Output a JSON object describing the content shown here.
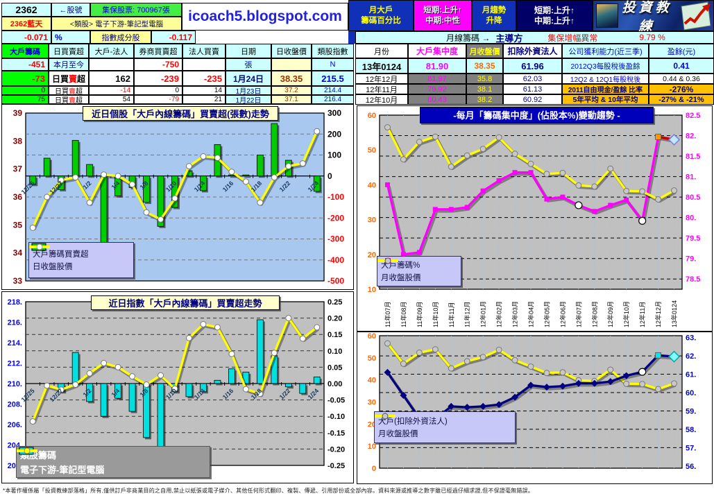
{
  "header": {
    "stock_id": "2362",
    "stock_ref": "←股號",
    "custody": "集保股票: 700967張",
    "stock_name": "2362藍天",
    "sector": "<類股> 電子下游-筆記型電腦",
    "site": "icoach5.blogspot.com",
    "chg1": "-0.071",
    "pct": "%",
    "idx_comp": "指數成分股",
    "chg2": "-0.117"
  },
  "band": {
    "b1a": "月大戶",
    "b1b": "籌碼百分比",
    "b2a": "短期:上升↑",
    "b2b": "中期:中性",
    "b3a": "月趨勢",
    "b3b": "升降",
    "b4a": "短期:上升↑",
    "b4b": "中期:上升↑",
    "logo": "投資教練"
  },
  "monthly_band": {
    "t1": "月線籌碼 →",
    "t2": "主導方",
    "t3": "集保增幅異常",
    "t4": "9.79 %"
  },
  "left_table": {
    "headers": [
      "大戶籌碼",
      "日買賣超",
      "大戶-法人",
      "券商買賣超",
      "法人買賣",
      "日期",
      "日收盤價",
      "類股指數"
    ],
    "sell_label": {
      "p1": "日買",
      "p2": "賣",
      "p3": "超"
    },
    "month_row": {
      "v": "-451",
      "label": "本月至今",
      "broker": "-750",
      "unit": "張",
      "idx": "N"
    },
    "rows": [
      {
        "chip": "-73",
        "inst": "162",
        "broker": "-239",
        "legal": "-235",
        "date": "1月24日",
        "close": "38.35",
        "index": "215.5"
      },
      {
        "chip": "0",
        "inst": "-14",
        "broker": "0",
        "legal": "14",
        "date": "1月23日",
        "close": "37.2",
        "index": "214.4"
      },
      {
        "chip": "75",
        "inst": "54",
        "broker": "-79",
        "legal": "21",
        "date": "1月22日",
        "close": "37.1",
        "index": "216.4"
      }
    ]
  },
  "right_table": {
    "headers": [
      "月份",
      "大戶集中度",
      "月收盤價",
      "扣除外資法人",
      "公司獲利能力(近三季)",
      "盈餘(元)"
    ],
    "rows": [
      {
        "month": "13年0124",
        "conc": "81.90",
        "close": "38.35",
        "excl": "61.96",
        "info": "2012Q3每股稅後盈餘",
        "val": "0.41"
      },
      {
        "month": "12年12月",
        "conc": "81.97",
        "close": "35.8",
        "excl": "62.03",
        "info": "12Q2 & 12Q1每股稅後",
        "val": "0.44 & 0.36"
      },
      {
        "month": "12年11月",
        "conc": "79.92",
        "close": "38.1",
        "excl": "61.13",
        "info": "2011自由現金/盈餘 比率",
        "val": "-276%"
      },
      {
        "month": "12年10月",
        "conc": "80.43",
        "close": "38.2",
        "excl": "60.92",
        "info": "5年平均 & 10年平均",
        "val": "-27% & -21%"
      }
    ]
  },
  "footer": {
    "disclaimer": "*本著作權係屬「投資教練部落格」所有,僅供訂戶非商業目的之自用,禁止以紙張或電子媒介、其他任何形式翻印、複製、傳遞、引用部份或全部內容。資料來源或推導之數字雖已經過仔細求證,但不保證毫無錯誤。"
  },
  "chart_data": [
    {
      "id": "daily-stock",
      "type": "bar",
      "title": "近日個股「大戶內線籌碼」買賣超(張數)走勢",
      "categories": [
        "12/25",
        "12/26",
        "12/27",
        "12/28",
        "1/2",
        "1/3",
        "1/4",
        "1/7",
        "1/8",
        "1/9",
        "1/10",
        "1/11",
        "1/14",
        "1/15",
        "1/16",
        "1/17",
        "1/18",
        "1/21",
        "1/22",
        "1/23",
        "1/24"
      ],
      "series": [
        {
          "name": "大戶籌碼買賣超",
          "type": "bar",
          "axis": "right",
          "color": "#00CC00",
          "values": [
            -40,
            85,
            -65,
            170,
            55,
            -430,
            -95,
            -55,
            -125,
            -240,
            -150,
            25,
            -70,
            150,
            5,
            5,
            100,
            250,
            75,
            0,
            -73
          ]
        },
        {
          "name": "日收盤股價",
          "type": "line",
          "axis": "left",
          "color": "#FFFF00",
          "marker": "circle",
          "marker_fill": "#FFFFFF",
          "values": [
            34.9,
            36.0,
            36.6,
            36.7,
            35.8,
            36.8,
            36.75,
            36.45,
            35.45,
            35.2,
            35.95,
            37.1,
            37.45,
            37.4,
            36.9,
            36.55,
            35.8,
            36.7,
            37.1,
            37.2,
            38.35
          ]
        }
      ],
      "left_axis": {
        "min": 33,
        "max": 39,
        "values": [
          39,
          38,
          37,
          36,
          35,
          34,
          33
        ],
        "labels": [
          "39",
          "38",
          "37",
          "36",
          "35",
          "34",
          "33"
        ],
        "color": "#8B0000"
      },
      "right_axis": {
        "min": -500,
        "max": 300,
        "values": [
          300,
          200,
          100,
          0,
          -100,
          -200,
          -300,
          -400,
          -500
        ],
        "labels": [
          "300",
          "200",
          "100",
          "0",
          "-100",
          "-200",
          "-300",
          "-400",
          "-500"
        ],
        "color": "#000000",
        "neg_color": "#FF0000"
      },
      "plot_bg": "#A8C8F0"
    },
    {
      "id": "monthly-concentration",
      "type": "line",
      "title": "-每月「籌碼集中度」(佔股本%)變動趨勢 -",
      "categories": [
        "11年07月",
        "11年08月",
        "11年09月",
        "11年10月",
        "11年11月",
        "11年12月",
        "12年01月",
        "12年02月",
        "12年03月",
        "12年04月",
        "12年05月",
        "12年06月",
        "12年07月",
        "12年08月",
        "12年09月",
        "12年10月",
        "12年11月",
        "12年12月",
        "13年0124"
      ],
      "series": [
        {
          "name": "大戶籌碼%",
          "type": "line",
          "axis": "right",
          "color": "#FF00FF",
          "marker": "square",
          "marker_fill": "#FF00FF",
          "values": [
            80.8,
            79.1,
            79.15,
            80.2,
            80.2,
            80.25,
            80.65,
            80.9,
            81.1,
            81.1,
            80.45,
            80.5,
            80.3,
            80.15,
            80.3,
            80.43,
            79.92,
            81.97,
            81.9
          ],
          "highlight_indices": [
            12,
            16
          ],
          "end_style": {
            "segment_color": "#CC0000",
            "prev_marker": "square",
            "prev_marker_fill": "#FF9900",
            "last_marker": "diamond",
            "last_marker_fill": "#BFE8FF",
            "last_marker_stroke": "#8080D0"
          }
        },
        {
          "name": "月收盤股價",
          "type": "line",
          "axis": "left",
          "color": "#FFFF00",
          "marker": "circle",
          "marker_fill": "#C8C8C8",
          "values": [
            56.5,
            47.3,
            52.3,
            53.8,
            45.2,
            48.4,
            50.3,
            53.6,
            48.9,
            46.0,
            43.1,
            43.4,
            39.8,
            39.5,
            44.6,
            38.2,
            38.1,
            35.8,
            38.35
          ]
        }
      ],
      "left_axis": {
        "min": 10,
        "max": 60,
        "values": [
          60,
          50,
          40,
          30,
          20,
          10
        ],
        "labels": [
          "60",
          "50",
          "40",
          "30",
          "20",
          "10"
        ],
        "color": "#FF6600"
      },
      "right_axis": {
        "min": 78.25,
        "max": 82.5,
        "values": [
          82.5,
          82,
          81.5,
          81,
          80.5,
          80,
          79.5,
          79,
          78.5
        ],
        "labels": [
          "82.5",
          "82.",
          "81.5",
          "81.",
          "80.5",
          "80.",
          "79.5",
          "79.",
          "78.5"
        ],
        "color": "#FF00FF"
      },
      "plot_bg": "#C0C0C0"
    },
    {
      "id": "daily-index",
      "type": "bar",
      "title": "近日指數「大戶內線籌碼」買賣超走勢",
      "categories": [
        "12/25",
        "12/26",
        "12/27",
        "12/28",
        "1/2",
        "1/3",
        "1/4",
        "1/7",
        "1/8",
        "1/9",
        "1/10",
        "1/11",
        "1/14",
        "1/15",
        "1/16",
        "1/17",
        "1/18",
        "1/21",
        "1/22",
        "1/23",
        "1/24"
      ],
      "series": [
        {
          "name": "類股籌碼",
          "type": "bar",
          "axis": "right",
          "color": "#00E0E0",
          "values": [
            0,
            0,
            -0.025,
            0.095,
            -0.055,
            -0.1,
            -0.045,
            -0.085,
            -0.165,
            -0.205,
            -0.025,
            -0.04,
            -0.025,
            0.01,
            0.045,
            0.035,
            0.195,
            0.085,
            -0.01,
            -0.03,
            0.02
          ]
        },
        {
          "name": "電子下游-筆記型電腦",
          "type": "line",
          "axis": "left",
          "color": "#FFFF00",
          "marker": "circle",
          "marker_fill": "#FFFFFF",
          "values": [
            206.3,
            209.8,
            209.4,
            209.9,
            211.0,
            212.0,
            211.6,
            210.7,
            209.9,
            210.8,
            209.5,
            214.45,
            215.8,
            215.5,
            212.9,
            209.45,
            209.0,
            213.0,
            216.4,
            214.4,
            215.5
          ]
        }
      ],
      "left_axis": {
        "min": 202,
        "max": 218,
        "values": [
          218,
          216,
          214,
          212,
          210,
          208,
          206,
          204,
          202
        ],
        "labels": [
          "218.",
          "216.",
          "214.",
          "212.",
          "210.",
          "208.",
          "206.",
          "204.",
          "202."
        ],
        "color": "#0000FF"
      },
      "right_axis": {
        "min": -0.25,
        "max": 0.25,
        "values": [
          0.25,
          0.2,
          0.15,
          0.1,
          0.05,
          0,
          -0.05,
          -0.1,
          -0.15,
          -0.2,
          -0.25
        ],
        "labels": [
          "0.25",
          "0.20",
          "0.15",
          "0.10",
          "0.05",
          "0.00",
          "-0.05",
          "-0.10",
          "-0.15",
          "-0.20",
          "-0.25"
        ],
        "color": "#000000"
      },
      "plot_bg": "#C0C0C0"
    },
    {
      "id": "monthly-excl-foreign",
      "type": "line",
      "title": "",
      "categories": [
        "11年07月",
        "11年08月",
        "11年09月",
        "11年10月",
        "11年11月",
        "11年12月",
        "12年01月",
        "12年02月",
        "12年03月",
        "12年04月",
        "12年05月",
        "12年06月",
        "12年07月",
        "12年08月",
        "12年09月",
        "12年10月",
        "12年11月",
        "12年12月",
        "13年0124"
      ],
      "series": [
        {
          "name": "大戶(扣除外資法人)",
          "type": "line",
          "axis": "right",
          "color": "#000080",
          "marker": "diamond",
          "marker_fill": "#000080",
          "values": [
            61.1,
            59.85,
            58.6,
            58.55,
            59.25,
            59.2,
            59.25,
            59.35,
            59.75,
            60.4,
            60.3,
            60.35,
            60.5,
            60.5,
            60.6,
            60.92,
            61.13,
            62.03,
            61.96
          ],
          "highlight_indices": [
            16
          ],
          "end_style": {
            "segment_color": "#000080",
            "prev_marker": "square",
            "prev_marker_fill": "#00E5EE",
            "last_marker": "diamond",
            "last_marker_fill": "#7FFFFF",
            "last_marker_stroke": "#00AAAA"
          }
        },
        {
          "name": "月收盤股價",
          "type": "line",
          "axis": "left",
          "color": "#FFFF00",
          "marker": "circle",
          "marker_fill": "#C8C8C8",
          "values": [
            56.5,
            47.3,
            52.3,
            53.8,
            45.2,
            48.4,
            50.3,
            53.6,
            48.9,
            46.0,
            43.1,
            43.4,
            39.8,
            39.5,
            44.6,
            38.2,
            38.1,
            35.8,
            38.35
          ]
        }
      ],
      "left_axis": {
        "min": 0,
        "max": 60,
        "values": [
          60,
          50,
          40,
          30,
          20,
          10,
          0
        ],
        "labels": [
          "60",
          "50",
          "40",
          "30",
          "20",
          "10",
          "0"
        ],
        "color": "#FF6600"
      },
      "right_axis": {
        "min": 55.88,
        "max": 63.1,
        "values": [
          63,
          62,
          61,
          60,
          59,
          58,
          57,
          56
        ],
        "labels": [
          "63.",
          "62.",
          "61.",
          "60.",
          "59.",
          "58.",
          "57.",
          "56."
        ],
        "color": "#0000CC"
      },
      "plot_bg": "#C0C0C0"
    }
  ]
}
